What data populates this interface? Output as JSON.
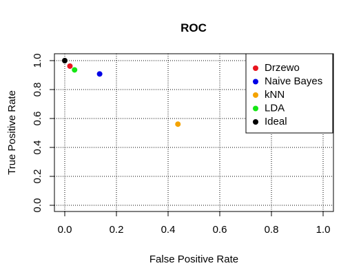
{
  "chart_data": {
    "type": "scatter",
    "title": "ROC",
    "xlabel": "False Positive Rate",
    "ylabel": "True Positive Rate",
    "xlim": [
      0.0,
      1.0
    ],
    "ylim": [
      0.0,
      1.0
    ],
    "x_ticks": [
      0.0,
      0.2,
      0.4,
      0.6,
      0.8,
      1.0
    ],
    "y_ticks": [
      0.0,
      0.2,
      0.4,
      0.6,
      0.8,
      1.0
    ],
    "x_tick_labels": [
      "0.0",
      "0.2",
      "0.4",
      "0.6",
      "0.8",
      "1.0"
    ],
    "y_tick_labels": [
      "0.0",
      "0.2",
      "0.4",
      "0.6",
      "0.8",
      "1.0"
    ],
    "grid": true,
    "legend_position": "top-right",
    "series": [
      {
        "name": "Drzewo",
        "color": "#e8141e",
        "x": [
          0.02
        ],
        "y": [
          0.962
        ]
      },
      {
        "name": "Naive Bayes",
        "color": "#0000e6",
        "x": [
          0.135
        ],
        "y": [
          0.908
        ]
      },
      {
        "name": "kNN",
        "color": "#f4a300",
        "x": [
          0.438
        ],
        "y": [
          0.561
        ]
      },
      {
        "name": "LDA",
        "color": "#14e614",
        "x": [
          0.038
        ],
        "y": [
          0.936
        ]
      },
      {
        "name": "Ideal",
        "color": "#000000",
        "x": [
          0.0
        ],
        "y": [
          1.0
        ]
      }
    ]
  }
}
